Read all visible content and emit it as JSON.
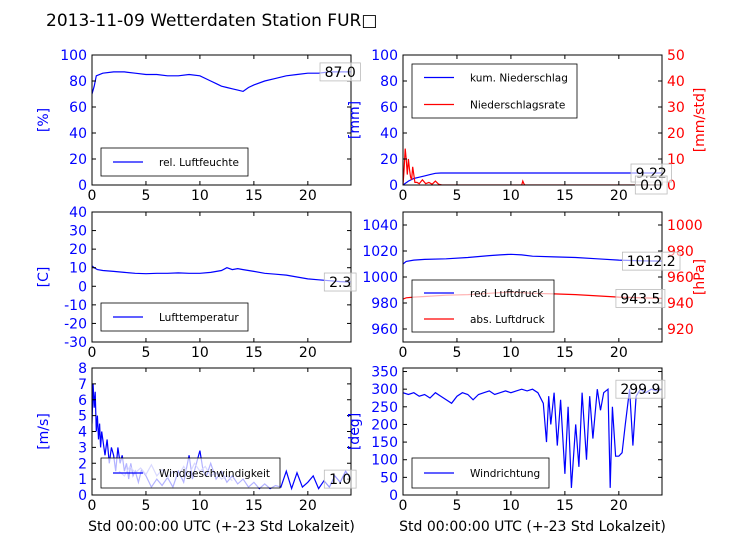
{
  "figure": {
    "title": "2013-11-09 Wetterdaten Station FUR□"
  },
  "colors": {
    "blue": "#0000ff",
    "red": "#ff0000",
    "light_blue": "#8080ff",
    "black": "#000000"
  },
  "chart_data": [
    {
      "id": "humidity",
      "type": "line",
      "xlim": [
        0,
        24
      ],
      "xticks": [
        0,
        5,
        10,
        15,
        20
      ],
      "xlabel": "",
      "ylabel": "[%]",
      "ylim": [
        0,
        100
      ],
      "yticks": [
        0,
        20,
        40,
        60,
        80,
        100
      ],
      "legend": "bottom-left",
      "grid": false,
      "series": [
        {
          "name": "rel. Luftfeuchte",
          "color": "blue",
          "x": [
            0,
            0.2,
            0.4,
            1,
            2,
            3,
            4,
            5,
            6,
            7,
            8,
            9,
            10,
            11,
            11.5,
            12,
            12.5,
            13,
            13.5,
            14,
            14.5,
            15,
            16,
            17,
            18,
            19,
            20,
            21,
            22,
            23,
            24
          ],
          "y": [
            70,
            76,
            84,
            86,
            87,
            87,
            86,
            85,
            85,
            84,
            84,
            85,
            84,
            80,
            78,
            76,
            75,
            74,
            73,
            72,
            75,
            77,
            80,
            82,
            84,
            85,
            86,
            86,
            87,
            87,
            87
          ]
        }
      ],
      "annotations": [
        {
          "text": "87.0",
          "x": 23,
          "y": 87,
          "color": "black"
        }
      ]
    },
    {
      "id": "precip",
      "type": "line",
      "xlim": [
        0,
        24
      ],
      "xticks": [
        0,
        5,
        10,
        15,
        20
      ],
      "xlabel": "",
      "ylabel": "[mm]",
      "ylim": [
        0,
        100
      ],
      "yticks": [
        0,
        20,
        40,
        60,
        80,
        100
      ],
      "ylabel_right": "[mm/std]",
      "ylim_right": [
        0,
        50
      ],
      "yticks_right": [
        0,
        10,
        20,
        30,
        40,
        50
      ],
      "legend": "top-left",
      "grid": false,
      "series": [
        {
          "name": "kum. Niederschlag",
          "color": "blue",
          "axis": "left",
          "x": [
            0,
            0.5,
            1,
            1.5,
            2,
            2.5,
            3,
            3.5,
            4,
            6,
            8,
            10,
            12,
            14,
            16,
            18,
            20,
            22,
            24
          ],
          "y": [
            0,
            3,
            5,
            6,
            7,
            8,
            9,
            9.2,
            9.22,
            9.22,
            9.22,
            9.22,
            9.22,
            9.22,
            9.22,
            9.22,
            9.22,
            9.22,
            9.22
          ]
        },
        {
          "name": "Niederschlagsrate",
          "color": "red",
          "axis": "right",
          "x": [
            0,
            0.1,
            0.2,
            0.3,
            0.4,
            0.5,
            0.6,
            0.7,
            0.8,
            0.9,
            1.0,
            1.1,
            1.3,
            1.5,
            1.8,
            2.1,
            2.4,
            2.7,
            3.0,
            3.3,
            3.6,
            4,
            6,
            8,
            10,
            11,
            11.1,
            11.2,
            11.3,
            12,
            14,
            16,
            18,
            20,
            22,
            24
          ],
          "y": [
            0,
            6,
            14,
            10,
            4,
            10,
            6,
            3,
            2,
            7,
            4,
            1,
            1,
            0.5,
            2,
            0.5,
            1,
            0.3,
            1.5,
            0.3,
            0,
            0,
            0,
            0,
            0,
            0,
            1.5,
            0.5,
            0,
            0,
            0,
            0,
            0,
            0,
            0,
            0
          ]
        }
      ],
      "annotations": [
        {
          "text": "9.22",
          "x": 23,
          "y": 9.22,
          "color": "black",
          "axis": "left"
        },
        {
          "text": "0.0",
          "x": 23,
          "y": 0,
          "color": "black",
          "axis": "left"
        }
      ]
    },
    {
      "id": "temperature",
      "type": "line",
      "xlim": [
        0,
        24
      ],
      "xticks": [
        0,
        5,
        10,
        15,
        20
      ],
      "xlabel": "",
      "ylabel": "[C]",
      "ylim": [
        -30,
        40
      ],
      "yticks": [
        -30,
        -20,
        -10,
        0,
        10,
        20,
        30,
        40
      ],
      "legend": "bottom-left",
      "grid": false,
      "series": [
        {
          "name": "Lufttemperatur",
          "color": "blue",
          "x": [
            0,
            0.2,
            0.5,
            1,
            2,
            3,
            4,
            5,
            6,
            7,
            8,
            9,
            10,
            11,
            12,
            12.5,
            13,
            13.5,
            14,
            15,
            16,
            17,
            18,
            19,
            20,
            21,
            22,
            23,
            24
          ],
          "y": [
            11,
            10,
            9,
            8.5,
            8,
            7.5,
            7,
            6.8,
            7,
            7,
            7.2,
            7,
            7,
            7.5,
            8.5,
            10,
            9,
            9.5,
            9,
            8,
            7,
            6.5,
            6,
            5,
            4,
            3.5,
            3,
            2.5,
            2.3
          ]
        }
      ],
      "annotations": [
        {
          "text": "2.3",
          "x": 23,
          "y": 2.3,
          "color": "black"
        }
      ]
    },
    {
      "id": "pressure",
      "type": "line",
      "xlim": [
        0,
        24
      ],
      "xticks": [
        0,
        5,
        10,
        15,
        20
      ],
      "xlabel": "",
      "ylabel": "",
      "ylim": [
        950,
        1050
      ],
      "yticks": [
        960,
        980,
        1000,
        1020,
        1040
      ],
      "ylabel_right": "[hPa]",
      "ylim_right": [
        910,
        1010
      ],
      "yticks_right": [
        920,
        940,
        960,
        980,
        1000
      ],
      "legend": "bottom-left",
      "grid": false,
      "series": [
        {
          "name": "red. Luftdruck",
          "color": "blue",
          "axis": "left",
          "x": [
            0,
            0.3,
            1,
            2,
            4,
            6,
            8,
            9,
            10,
            11,
            12,
            14,
            16,
            18,
            20,
            22,
            24
          ],
          "y": [
            1010,
            1012,
            1013,
            1013.5,
            1014,
            1015,
            1016.5,
            1017,
            1017.5,
            1017,
            1016,
            1015.5,
            1015,
            1014,
            1013,
            1012.5,
            1012.2
          ]
        },
        {
          "name": "abs. Luftdruck",
          "color": "red",
          "axis": "right",
          "x": [
            0,
            0.3,
            1,
            2,
            4,
            6,
            8,
            9,
            10,
            11,
            12,
            14,
            16,
            18,
            20,
            22,
            24
          ],
          "y": [
            943,
            944,
            944.5,
            945,
            946,
            946.5,
            947.5,
            948,
            948.3,
            948,
            947.5,
            947,
            946.5,
            945.5,
            944.5,
            944,
            943.5
          ]
        }
      ],
      "annotations": [
        {
          "text": "1012.2",
          "x": 23,
          "y": 1012.2,
          "color": "black",
          "axis": "left"
        },
        {
          "text": "943.5",
          "x": 22,
          "y": 943.5,
          "color": "black",
          "axis": "right"
        }
      ]
    },
    {
      "id": "wind_speed",
      "type": "line",
      "xlim": [
        0,
        24
      ],
      "xticks": [
        0,
        5,
        10,
        15,
        20
      ],
      "xlabel": "Std 00:00:00 UTC (+-23 Std Lokalzeit)",
      "ylabel": "[m/s]",
      "ylim": [
        0,
        8
      ],
      "yticks": [
        0,
        1,
        2,
        3,
        4,
        5,
        6,
        7,
        8
      ],
      "legend": "bottom-left",
      "grid": false,
      "series": [
        {
          "name": "Windgeschwindigkeit",
          "color": "blue",
          "x": [
            0,
            0.1,
            0.2,
            0.3,
            0.4,
            0.5,
            0.6,
            0.7,
            0.8,
            0.9,
            1,
            1.2,
            1.4,
            1.6,
            1.8,
            2,
            2.2,
            2.4,
            2.6,
            2.8,
            3,
            3.2,
            3.4,
            3.6,
            3.8,
            4,
            4.3,
            4.6,
            5,
            5.5,
            6,
            6.5,
            7,
            7.5,
            8,
            8.5,
            9,
            9.3,
            9.6,
            10,
            10.3,
            10.6,
            11,
            11.5,
            12,
            12.5,
            13,
            13.5,
            14,
            14.5,
            15,
            15.5,
            16,
            16.5,
            17,
            17.5,
            18,
            18.5,
            19,
            19.5,
            20,
            20.5,
            21,
            21.5,
            22,
            22.5,
            23,
            23.5,
            24
          ],
          "y": [
            4.5,
            7,
            5.5,
            6.5,
            4,
            5,
            3.5,
            4.5,
            3,
            4,
            3.5,
            2.5,
            3.5,
            2,
            3,
            2.5,
            1.5,
            3,
            2,
            2.5,
            1.5,
            2,
            1,
            2,
            1.2,
            1.5,
            0.8,
            1.6,
            1.2,
            0.5,
            1,
            0.6,
            1.1,
            0.5,
            1.5,
            0.8,
            2.5,
            1,
            1.8,
            2.8,
            1.5,
            1.2,
            2,
            1,
            1.5,
            0.8,
            1.2,
            0.7,
            1,
            0.5,
            0.8,
            0.4,
            0.7,
            0.4,
            0.6,
            0.5,
            1.5,
            0.4,
            1.4,
            0.5,
            0.8,
            1.2,
            0.4,
            0.9,
            0.5,
            1.2,
            0.8,
            1.5,
            1.0
          ]
        },
        {
          "name": "",
          "color": "light_blue",
          "x": [
            2.5,
            3,
            3.5,
            4,
            4.5,
            5,
            5.5,
            6,
            6.5,
            7,
            7.5,
            8,
            8.5,
            9,
            9.5,
            10,
            10.5,
            11,
            11.5,
            12,
            12.5,
            13
          ],
          "y": [
            1.5,
            1.2,
            1.8,
            1.4,
            1.7,
            1.3,
            1.9,
            1.2,
            1.6,
            1.1,
            1.5,
            1.2,
            1.8,
            1.3,
            2.0,
            1.5,
            1.8,
            1.2,
            1.4,
            1.0,
            1.2,
            0.9
          ]
        }
      ],
      "annotations": [
        {
          "text": "1.0",
          "x": 23,
          "y": 1.0,
          "color": "black"
        }
      ]
    },
    {
      "id": "wind_dir",
      "type": "line",
      "xlim": [
        0,
        24
      ],
      "xticks": [
        0,
        5,
        10,
        15,
        20
      ],
      "xlabel": "Std 00:00:00 UTC (+-23 Std Lokalzeit)",
      "ylabel": "[deg]",
      "ylim": [
        0,
        360
      ],
      "yticks": [
        0,
        50,
        100,
        150,
        200,
        250,
        300,
        350
      ],
      "legend": "bottom-left",
      "grid": false,
      "series": [
        {
          "name": "Windrichtung",
          "color": "blue",
          "x": [
            0,
            0.5,
            1,
            1.5,
            2,
            2.5,
            3,
            3.5,
            4,
            4.5,
            5,
            5.5,
            6,
            6.5,
            7,
            7.5,
            8,
            8.5,
            9,
            9.5,
            10,
            10.5,
            11,
            11.5,
            12,
            12.5,
            13,
            13.3,
            13.5,
            13.7,
            14,
            14.3,
            14.6,
            15,
            15.3,
            15.6,
            16,
            16.3,
            16.6,
            17,
            17.3,
            17.6,
            18,
            18.3,
            18.6,
            19,
            19.2,
            19.4,
            19.7,
            20,
            20.3,
            20.6,
            21,
            21.3,
            21.6,
            22,
            22.5,
            23,
            23.5,
            24
          ],
          "y": [
            290,
            285,
            290,
            280,
            285,
            275,
            290,
            280,
            270,
            260,
            280,
            290,
            285,
            270,
            285,
            290,
            295,
            285,
            290,
            295,
            290,
            295,
            300,
            295,
            300,
            290,
            260,
            150,
            280,
            200,
            290,
            140,
            270,
            60,
            250,
            20,
            200,
            80,
            290,
            100,
            280,
            160,
            300,
            240,
            290,
            300,
            20,
            250,
            110,
            110,
            120,
            200,
            300,
            140,
            280,
            300,
            290,
            300,
            295,
            299.9
          ]
        }
      ],
      "annotations": [
        {
          "text": "299.9",
          "x": 22,
          "y": 299.9,
          "color": "black"
        }
      ]
    }
  ]
}
